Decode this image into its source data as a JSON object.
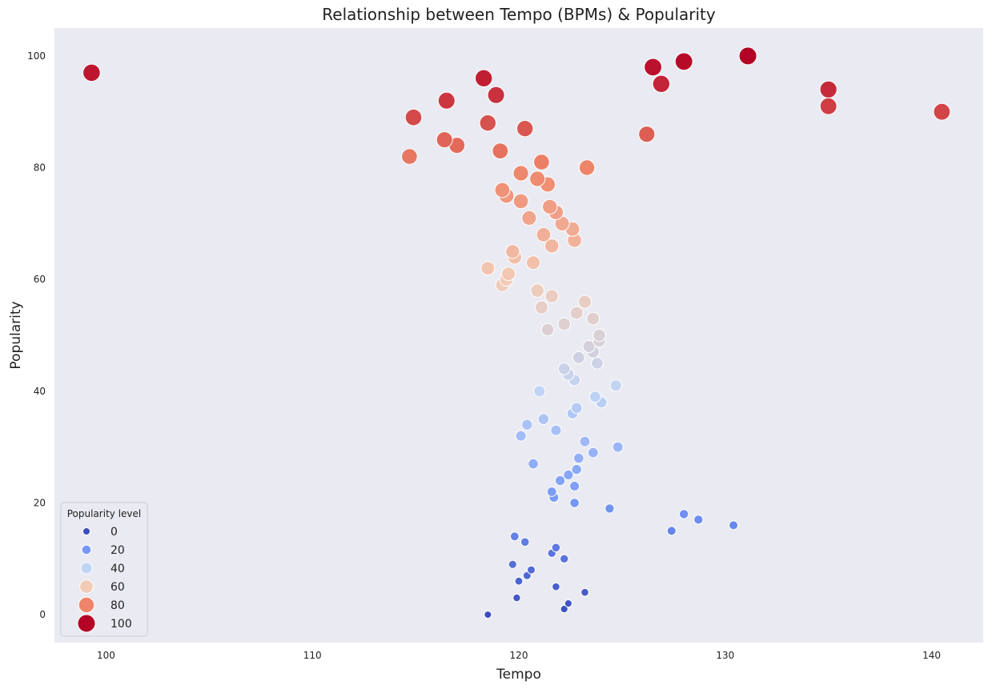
{
  "chart_data": {
    "type": "scatter",
    "title": "Relationship between Tempo (BPMs) & Popularity",
    "xlabel": "Tempo",
    "ylabel": "Popularity",
    "xlim": [
      97.5,
      142.5
    ],
    "ylim": [
      -5,
      105
    ],
    "xticks": [
      100,
      110,
      120,
      130,
      140
    ],
    "yticks": [
      0,
      20,
      40,
      60,
      80,
      100
    ],
    "grid": false,
    "background": "#eaeaf2",
    "colormap": [
      "#3b4cc0",
      "#7597f6",
      "#c0d4f5",
      "#f2cbb7",
      "#ee8468",
      "#b40426"
    ],
    "legend": {
      "title": "Popularity level",
      "placement": "lower-left",
      "entries": [
        0,
        20,
        40,
        60,
        80,
        100
      ]
    },
    "points": [
      {
        "x": 99.3,
        "y": 97
      },
      {
        "x": 118.3,
        "y": 96
      },
      {
        "x": 116.5,
        "y": 92
      },
      {
        "x": 118.9,
        "y": 93
      },
      {
        "x": 114.9,
        "y": 89
      },
      {
        "x": 118.5,
        "y": 88
      },
      {
        "x": 120.3,
        "y": 87
      },
      {
        "x": 116.4,
        "y": 85
      },
      {
        "x": 117.0,
        "y": 84
      },
      {
        "x": 114.7,
        "y": 82
      },
      {
        "x": 119.1,
        "y": 83
      },
      {
        "x": 121.1,
        "y": 81
      },
      {
        "x": 123.3,
        "y": 80
      },
      {
        "x": 120.1,
        "y": 79
      },
      {
        "x": 120.9,
        "y": 78
      },
      {
        "x": 121.4,
        "y": 77
      },
      {
        "x": 119.2,
        "y": 76
      },
      {
        "x": 119.4,
        "y": 75
      },
      {
        "x": 120.1,
        "y": 74
      },
      {
        "x": 121.5,
        "y": 73
      },
      {
        "x": 121.8,
        "y": 72
      },
      {
        "x": 120.5,
        "y": 71
      },
      {
        "x": 122.1,
        "y": 70
      },
      {
        "x": 122.6,
        "y": 69
      },
      {
        "x": 121.2,
        "y": 68
      },
      {
        "x": 122.7,
        "y": 67
      },
      {
        "x": 121.6,
        "y": 66
      },
      {
        "x": 119.7,
        "y": 65
      },
      {
        "x": 119.8,
        "y": 64
      },
      {
        "x": 120.7,
        "y": 63
      },
      {
        "x": 118.5,
        "y": 62
      },
      {
        "x": 119.5,
        "y": 61
      },
      {
        "x": 119.4,
        "y": 60
      },
      {
        "x": 119.2,
        "y": 59
      },
      {
        "x": 120.9,
        "y": 58
      },
      {
        "x": 121.6,
        "y": 57
      },
      {
        "x": 123.2,
        "y": 56
      },
      {
        "x": 121.1,
        "y": 55
      },
      {
        "x": 122.8,
        "y": 54
      },
      {
        "x": 123.6,
        "y": 53
      },
      {
        "x": 122.2,
        "y": 52
      },
      {
        "x": 121.4,
        "y": 51
      },
      {
        "x": 123.9,
        "y": 50
      },
      {
        "x": 123.9,
        "y": 49
      },
      {
        "x": 123.4,
        "y": 48
      },
      {
        "x": 123.6,
        "y": 47
      },
      {
        "x": 122.9,
        "y": 46
      },
      {
        "x": 123.8,
        "y": 45
      },
      {
        "x": 122.2,
        "y": 44
      },
      {
        "x": 122.4,
        "y": 43
      },
      {
        "x": 122.7,
        "y": 42
      },
      {
        "x": 124.7,
        "y": 41
      },
      {
        "x": 121.0,
        "y": 40
      },
      {
        "x": 123.7,
        "y": 39
      },
      {
        "x": 124.0,
        "y": 38
      },
      {
        "x": 122.8,
        "y": 37
      },
      {
        "x": 122.6,
        "y": 36
      },
      {
        "x": 121.2,
        "y": 35
      },
      {
        "x": 120.4,
        "y": 34
      },
      {
        "x": 121.8,
        "y": 33
      },
      {
        "x": 120.1,
        "y": 32
      },
      {
        "x": 123.2,
        "y": 31
      },
      {
        "x": 124.8,
        "y": 30
      },
      {
        "x": 123.6,
        "y": 29
      },
      {
        "x": 122.9,
        "y": 28
      },
      {
        "x": 120.7,
        "y": 27
      },
      {
        "x": 122.8,
        "y": 26
      },
      {
        "x": 122.4,
        "y": 25
      },
      {
        "x": 122.0,
        "y": 24
      },
      {
        "x": 122.7,
        "y": 23
      },
      {
        "x": 121.6,
        "y": 22
      },
      {
        "x": 121.7,
        "y": 21
      },
      {
        "x": 122.7,
        "y": 20
      },
      {
        "x": 124.4,
        "y": 19
      },
      {
        "x": 128.0,
        "y": 18
      },
      {
        "x": 128.7,
        "y": 17
      },
      {
        "x": 130.4,
        "y": 16
      },
      {
        "x": 127.4,
        "y": 15
      },
      {
        "x": 119.8,
        "y": 14
      },
      {
        "x": 120.3,
        "y": 13
      },
      {
        "x": 121.8,
        "y": 12
      },
      {
        "x": 121.6,
        "y": 11
      },
      {
        "x": 122.2,
        "y": 10
      },
      {
        "x": 119.7,
        "y": 9
      },
      {
        "x": 120.6,
        "y": 8
      },
      {
        "x": 120.4,
        "y": 7
      },
      {
        "x": 120.0,
        "y": 6
      },
      {
        "x": 121.8,
        "y": 5
      },
      {
        "x": 123.2,
        "y": 4
      },
      {
        "x": 119.9,
        "y": 3
      },
      {
        "x": 122.4,
        "y": 2
      },
      {
        "x": 122.2,
        "y": 1
      },
      {
        "x": 118.5,
        "y": 0
      },
      {
        "x": 126.2,
        "y": 86
      },
      {
        "x": 126.5,
        "y": 98
      },
      {
        "x": 126.9,
        "y": 95
      },
      {
        "x": 128.0,
        "y": 99
      },
      {
        "x": 131.1,
        "y": 100
      },
      {
        "x": 135.0,
        "y": 94
      },
      {
        "x": 135.0,
        "y": 91
      },
      {
        "x": 140.5,
        "y": 90
      }
    ]
  }
}
